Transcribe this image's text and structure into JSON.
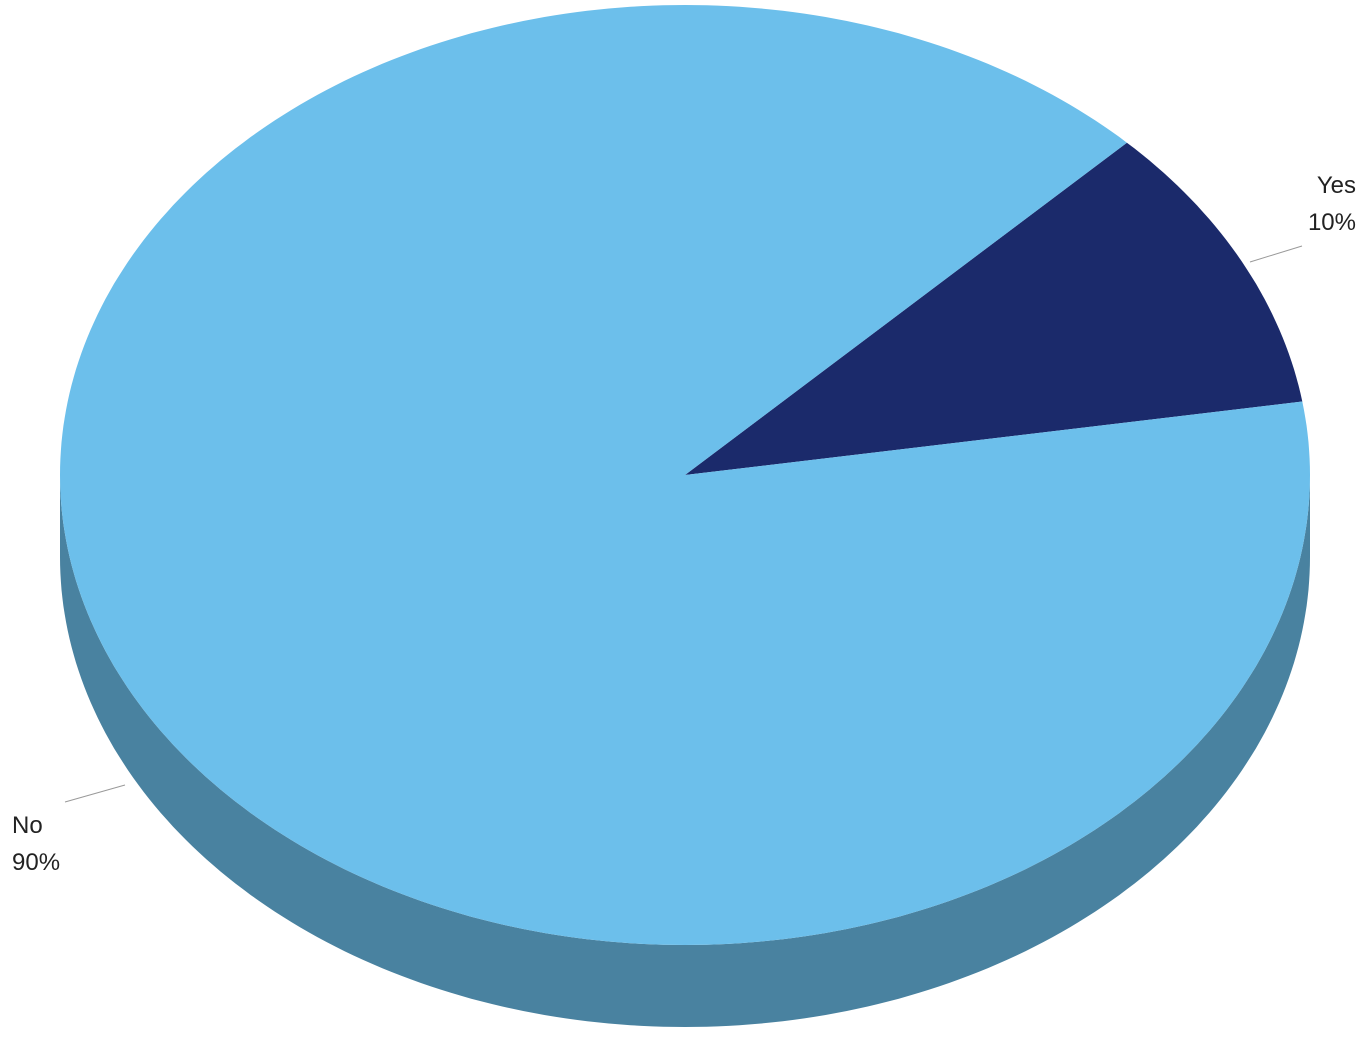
{
  "chart_data": {
    "type": "pie",
    "categories": [
      "Yes",
      "No"
    ],
    "values": [
      10,
      90
    ],
    "value_labels": [
      "10%",
      "90%"
    ],
    "colors": [
      "#1b2a6b",
      "#6cbfeb"
    ]
  }
}
